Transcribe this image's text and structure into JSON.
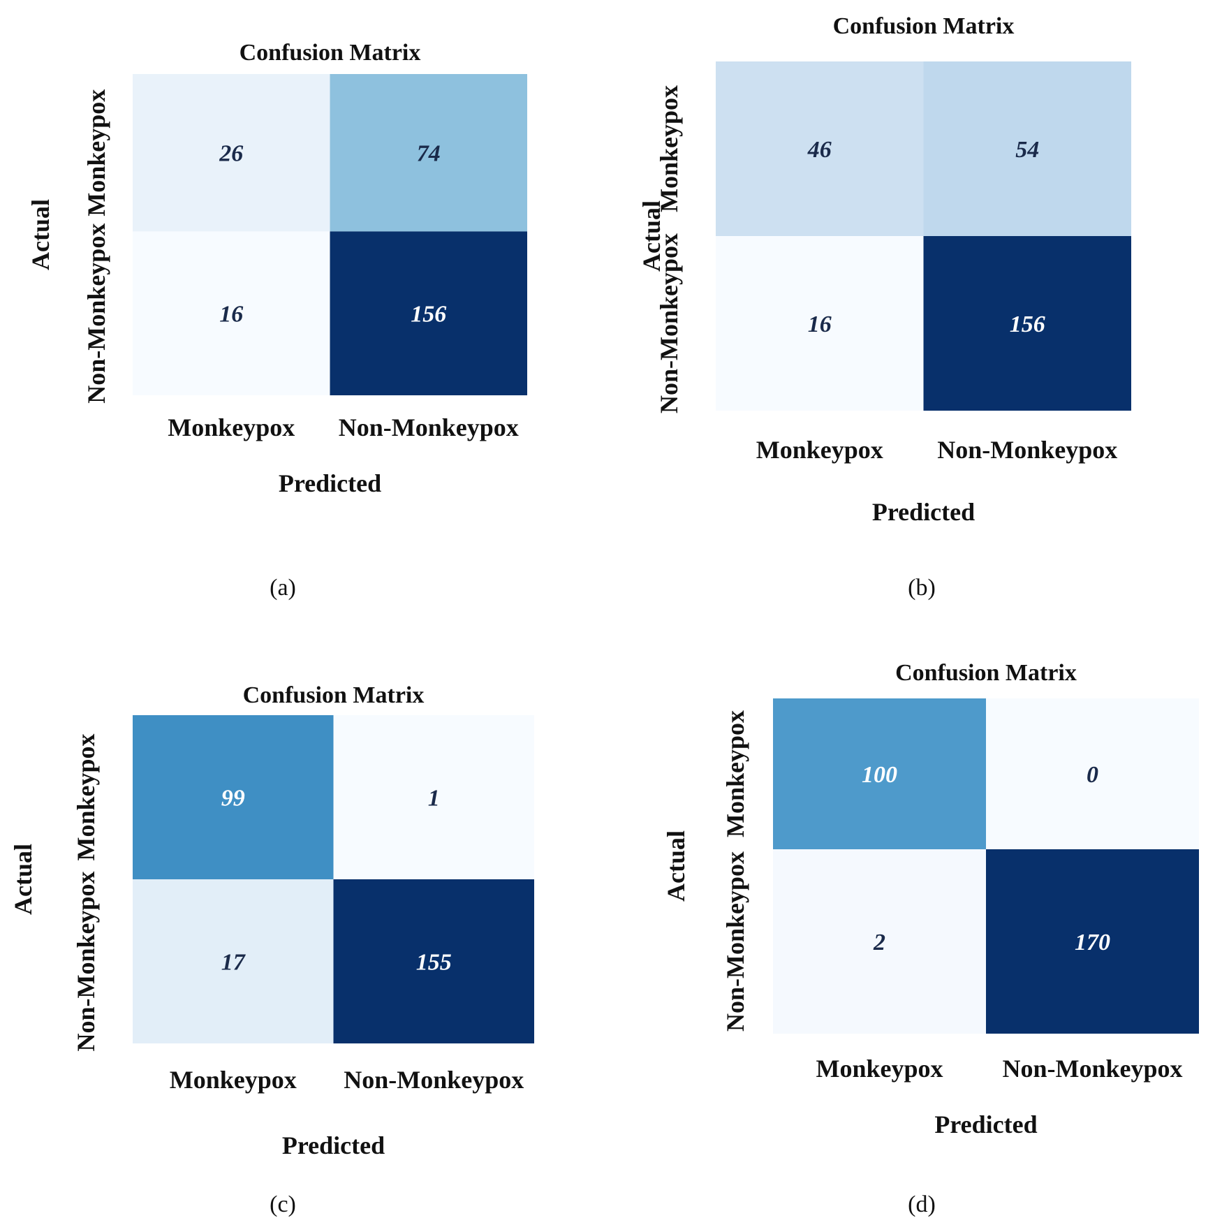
{
  "figure": {
    "captions": [
      "(a)",
      "(b)",
      "(c)",
      "(d)"
    ]
  },
  "chart_data": [
    {
      "type": "heatmap",
      "title": "Confusion Matrix",
      "xlabel": "Predicted",
      "ylabel": "Actual",
      "x_categories": [
        "Monkeypox",
        "Non-Monkeypox"
      ],
      "y_categories": [
        "Monkeypox",
        "Non-Monkeypox"
      ],
      "values": [
        [
          26,
          74
        ],
        [
          16,
          156
        ]
      ],
      "colormap": "Blues",
      "caption": "(a)"
    },
    {
      "type": "heatmap",
      "title": "Confusion Matrix",
      "xlabel": "Predicted",
      "ylabel": "Actual",
      "x_categories": [
        "Monkeypox",
        "Non-Monkeypox"
      ],
      "y_categories": [
        "Monkeypox",
        "Non-Monkeypox"
      ],
      "values": [
        [
          46,
          54
        ],
        [
          16,
          156
        ]
      ],
      "colormap": "Blues",
      "caption": "(b)"
    },
    {
      "type": "heatmap",
      "title": "Confusion Matrix",
      "xlabel": "Predicted",
      "ylabel": "Actual",
      "x_categories": [
        "Monkeypox",
        "Non-Monkeypox"
      ],
      "y_categories": [
        "Monkeypox",
        "Non-Monkeypox"
      ],
      "values": [
        [
          99,
          1
        ],
        [
          17,
          155
        ]
      ],
      "colormap": "Blues",
      "caption": "(c)"
    },
    {
      "type": "heatmap",
      "title": "Confusion Matrix",
      "xlabel": "Predicted",
      "ylabel": "Actual",
      "x_categories": [
        "Monkeypox",
        "Non-Monkeypox"
      ],
      "y_categories": [
        "Monkeypox",
        "Non-Monkeypox"
      ],
      "values": [
        [
          100,
          0
        ],
        [
          2,
          170
        ]
      ],
      "colormap": "Blues",
      "caption": "(d)"
    }
  ]
}
